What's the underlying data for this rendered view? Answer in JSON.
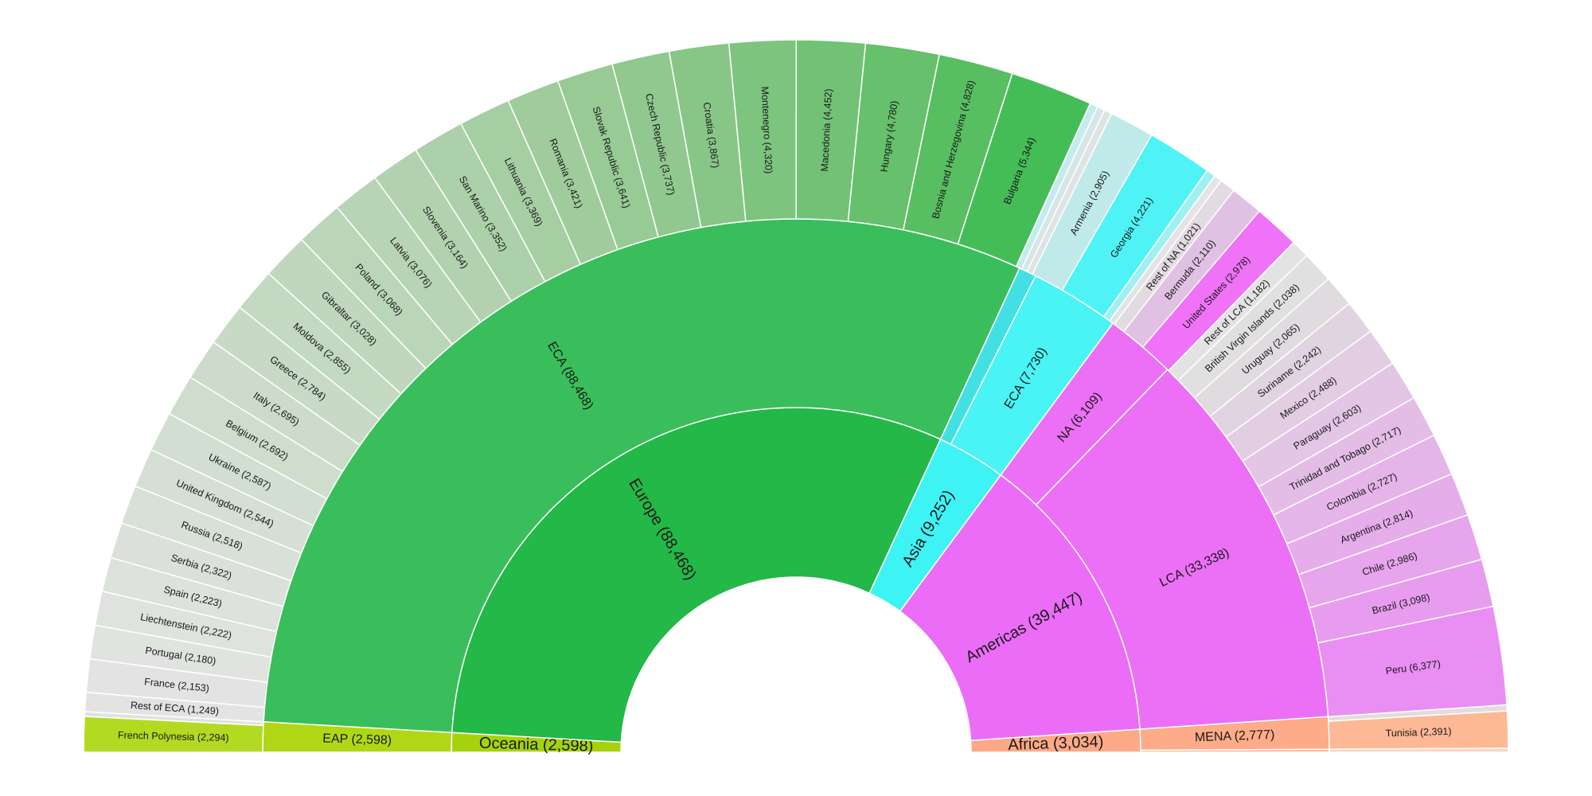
{
  "chart_data": {
    "type": "sunburst-semicircle",
    "title": "",
    "levels": [
      [
        {
          "label": "Oceania (2,598)",
          "value": 2598,
          "color": "#a6d20b"
        },
        {
          "label": "Europe (88,468)",
          "value": 88468,
          "color": "#23b847"
        },
        {
          "label": "Asia (9,252)",
          "value": 9252,
          "color": "#3ef3f4"
        },
        {
          "label": "Americas (39,447)",
          "value": 39447,
          "color": "#eb6cf6"
        },
        {
          "label": "Africa (3,034)",
          "value": 3034,
          "color": "#fda886"
        }
      ],
      [
        {
          "label": "EAP (2,598)",
          "value": 2598,
          "color": "#b0d716"
        },
        {
          "label": "ECA (88,468)",
          "value": 88468,
          "color": "#39be5b"
        },
        {
          "label": "",
          "value": 1522,
          "color": "#42e0e3"
        },
        {
          "label": "ECA (7,730)",
          "value": 7730,
          "color": "#4af3f4"
        },
        {
          "label": "NA (6,109)",
          "value": 6109,
          "color": "#ec70f6"
        },
        {
          "label": "LCA (33,338)",
          "value": 33338,
          "color": "#ec70f6"
        },
        {
          "label": "MENA (2,777)",
          "value": 2777,
          "color": "#fdab88"
        },
        {
          "label": "",
          "value": 257,
          "color": "#fdb895"
        }
      ],
      [
        {
          "label": "French Polynesia (2,294)",
          "value": 2294,
          "color": "#b3da22"
        },
        {
          "label": "",
          "value": 304,
          "color": "#dfe3de"
        },
        {
          "label": "Rest of ECA (1,249)",
          "value": 1249,
          "color": "#e3e3e3"
        },
        {
          "label": "France (2,153)",
          "value": 2153,
          "color": "#e2e3e2"
        },
        {
          "label": "Portugal (2,180)",
          "value": 2180,
          "color": "#e0e3e0"
        },
        {
          "label": "Liechtenstein (2,222)",
          "value": 2222,
          "color": "#dfe2de"
        },
        {
          "label": "Spain (2,223)",
          "value": 2223,
          "color": "#dde2dc"
        },
        {
          "label": "Serbia (2,322)",
          "value": 2322,
          "color": "#dbe1da"
        },
        {
          "label": "Russia (2,518)",
          "value": 2518,
          "color": "#d8e0d7"
        },
        {
          "label": "United Kingdom (2,544)",
          "value": 2544,
          "color": "#d5dfd4"
        },
        {
          "label": "Ukraine (2,587)",
          "value": 2587,
          "color": "#d2ded1"
        },
        {
          "label": "Belgium (2,692)",
          "value": 2692,
          "color": "#cfddcd"
        },
        {
          "label": "Italy (2,695)",
          "value": 2695,
          "color": "#ccdbca"
        },
        {
          "label": "Greece (2,784)",
          "value": 2784,
          "color": "#c8dac6"
        },
        {
          "label": "Moldova (2,855)",
          "value": 2855,
          "color": "#c4d9c2"
        },
        {
          "label": "Gibraltar (3,028)",
          "value": 3028,
          "color": "#c0d7be"
        },
        {
          "label": "Poland (3,068)",
          "value": 3068,
          "color": "#bbd5b9"
        },
        {
          "label": "Latvia (3,076)",
          "value": 3076,
          "color": "#b7d4b4"
        },
        {
          "label": "Slovenia (3,164)",
          "value": 3164,
          "color": "#b2d2af"
        },
        {
          "label": "San Marino (3,352)",
          "value": 3352,
          "color": "#acd0a9"
        },
        {
          "label": "Lithuania (3,369)",
          "value": 3369,
          "color": "#a6cea3"
        },
        {
          "label": "Romania (3,421)",
          "value": 3421,
          "color": "#a0cc9d"
        },
        {
          "label": "Slovak Republic (3,641)",
          "value": 3641,
          "color": "#98ca96"
        },
        {
          "label": "Czech Republic (3,737)",
          "value": 3737,
          "color": "#90c88f"
        },
        {
          "label": "Croatia (3,867)",
          "value": 3867,
          "color": "#88c688"
        },
        {
          "label": "Montenegro (4,320)",
          "value": 4320,
          "color": "#7dc47f"
        },
        {
          "label": "Macedonia (4,452)",
          "value": 4452,
          "color": "#72c276"
        },
        {
          "label": "Hungary (4,780)",
          "value": 4780,
          "color": "#66c06c"
        },
        {
          "label": "Bosnia and Herzegovina (4,828)",
          "value": 4828,
          "color": "#58be62"
        },
        {
          "label": "Bulgaria (5,344)",
          "value": 5344,
          "color": "#45bd57"
        },
        {
          "label": "",
          "value": 520,
          "color": "#c4ecee"
        },
        {
          "label": "",
          "value": 502,
          "color": "#d6e6e6"
        },
        {
          "label": "",
          "value": 500,
          "color": "#dfe3e3"
        },
        {
          "label": "Armenia (2,905)",
          "value": 2905,
          "color": "#c0eaea"
        },
        {
          "label": "Georgia (4,221)",
          "value": 4221,
          "color": "#4ff3f5"
        },
        {
          "label": "",
          "value": 604,
          "color": "#9ef0f2"
        },
        {
          "label": "",
          "value": 500,
          "color": "#e4e4e4"
        },
        {
          "label": "Rest of NA (1,021)",
          "value": 1021,
          "color": "#e2dbe2"
        },
        {
          "label": "Bermuda (2,110)",
          "value": 2110,
          "color": "#e0c1e3"
        },
        {
          "label": "United States (2,978)",
          "value": 2978,
          "color": "#ef72f7"
        },
        {
          "label": "Rest of LCA (1,182)",
          "value": 1182,
          "color": "#e3e3e3"
        },
        {
          "label": "British Virgin Islands (2,038)",
          "value": 2038,
          "color": "#e1e0e1"
        },
        {
          "label": "Uruguay (2,065)",
          "value": 2065,
          "color": "#dfdbdf"
        },
        {
          "label": "Suriname (2,242)",
          "value": 2242,
          "color": "#e0d4e1"
        },
        {
          "label": "Mexico (2,488)",
          "value": 2488,
          "color": "#e2cde3"
        },
        {
          "label": "Paraguay (2,603)",
          "value": 2603,
          "color": "#e3c5e5"
        },
        {
          "label": "Trinidad and Tobago (2,717)",
          "value": 2717,
          "color": "#e4bde7"
        },
        {
          "label": "Colombia (2,727)",
          "value": 2727,
          "color": "#e5b5e9"
        },
        {
          "label": "Argentina (2,814)",
          "value": 2814,
          "color": "#e6adeb"
        },
        {
          "label": "Chile (2,986)",
          "value": 2986,
          "color": "#e7a5ed"
        },
        {
          "label": "Brazil (3,098)",
          "value": 3098,
          "color": "#e89cef"
        },
        {
          "label": "Peru (6,377)",
          "value": 6377,
          "color": "#e98ef2"
        },
        {
          "label": "",
          "value": 386,
          "color": "#e3dbdf"
        },
        {
          "label": "Tunisia (2,391)",
          "value": 2391,
          "color": "#fdb895"
        },
        {
          "label": "",
          "value": 257,
          "color": "#fbd3c0"
        }
      ]
    ]
  }
}
